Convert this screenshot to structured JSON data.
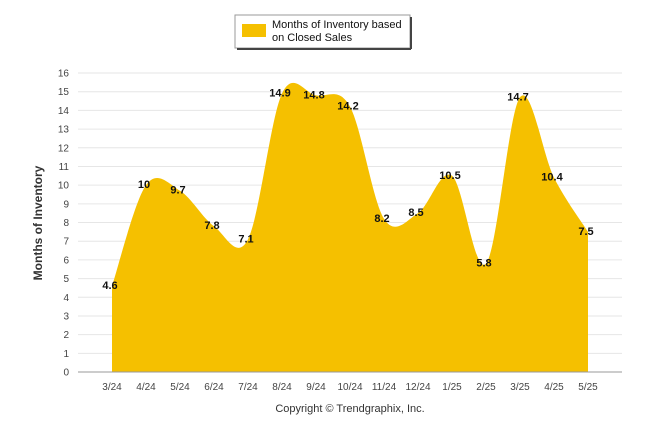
{
  "chart_data": {
    "type": "area",
    "categories": [
      "3/24",
      "4/24",
      "5/24",
      "6/24",
      "7/24",
      "8/24",
      "9/24",
      "10/24",
      "11/24",
      "12/24",
      "1/25",
      "2/25",
      "3/25",
      "4/25",
      "5/25"
    ],
    "series": [
      {
        "name": "Months of Inventory based on Closed Sales",
        "name_lines": [
          "Months of Inventory based",
          "on Closed Sales"
        ],
        "values": [
          4.6,
          10,
          9.7,
          7.8,
          7.1,
          14.9,
          14.8,
          14.2,
          8.2,
          8.5,
          10.5,
          5.8,
          14.7,
          10.4,
          7.5
        ],
        "labels": [
          "4.6",
          "10",
          "9.7",
          "7.8",
          "7.1",
          "14.9",
          "14.8",
          "14.2",
          "8.2",
          "8.5",
          "10.5",
          "5.8",
          "14.7",
          "10.4",
          "7.5"
        ],
        "color": "#f5c000"
      }
    ],
    "ylabel": "Months of Inventory",
    "xlabel": "",
    "ylim": [
      0,
      16
    ],
    "yticks": [
      0,
      1,
      2,
      3,
      4,
      5,
      6,
      7,
      8,
      9,
      10,
      11,
      12,
      13,
      14,
      15,
      16
    ],
    "grid": true,
    "legend": "top-center"
  },
  "footer": {
    "copyright": "Copyright © Trendgraphix, Inc."
  },
  "colors": {
    "area": "#f5c000",
    "grid": "#e6e6e6",
    "axis": "#999999"
  }
}
